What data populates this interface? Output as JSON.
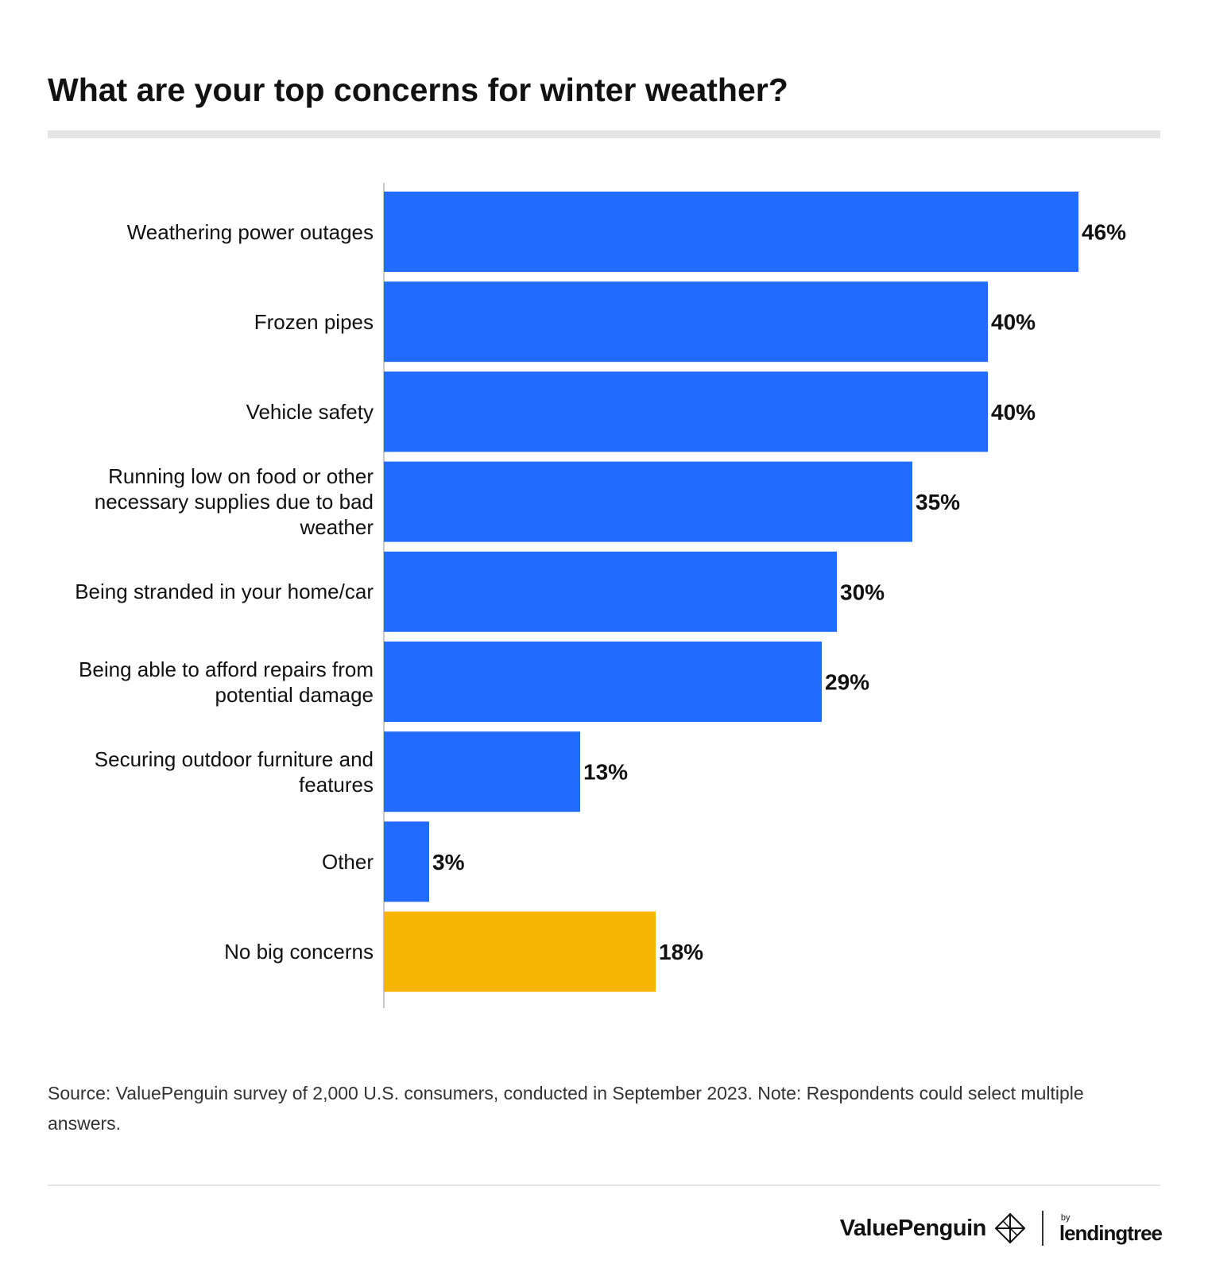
{
  "chart_data": {
    "type": "bar",
    "orientation": "horizontal",
    "title": "What are your top concerns for winter weather?",
    "categories": [
      "Weathering power outages",
      "Frozen pipes",
      "Vehicle safety",
      "Running low on food or other necessary supplies due to bad weather",
      "Being stranded in your home/car",
      "Being able to afford repairs from potential damage",
      "Securing outdoor furniture and features",
      "Other",
      "No big concerns"
    ],
    "values": [
      46,
      40,
      40,
      35,
      30,
      29,
      13,
      3,
      18
    ],
    "value_labels": [
      "46%",
      "40%",
      "40%",
      "35%",
      "30%",
      "29%",
      "13%",
      "3%",
      "18%"
    ],
    "bar_colors": [
      "#216bff",
      "#216bff",
      "#216bff",
      "#216bff",
      "#216bff",
      "#216bff",
      "#216bff",
      "#216bff",
      "#f7b500"
    ],
    "xlim": [
      0,
      46
    ],
    "grid": false,
    "legend": "none"
  },
  "footer": {
    "source": "Source: ValuePenguin survey of 2,000 U.S. consumers, conducted in September 2023. Note: Respondents could select multiple answers."
  },
  "logos": {
    "valuepenguin": "ValuePenguin",
    "by": "by",
    "lendingtree": "lendingtree"
  },
  "colors": {
    "accent": "#216bff",
    "highlight": "#f7b500"
  }
}
